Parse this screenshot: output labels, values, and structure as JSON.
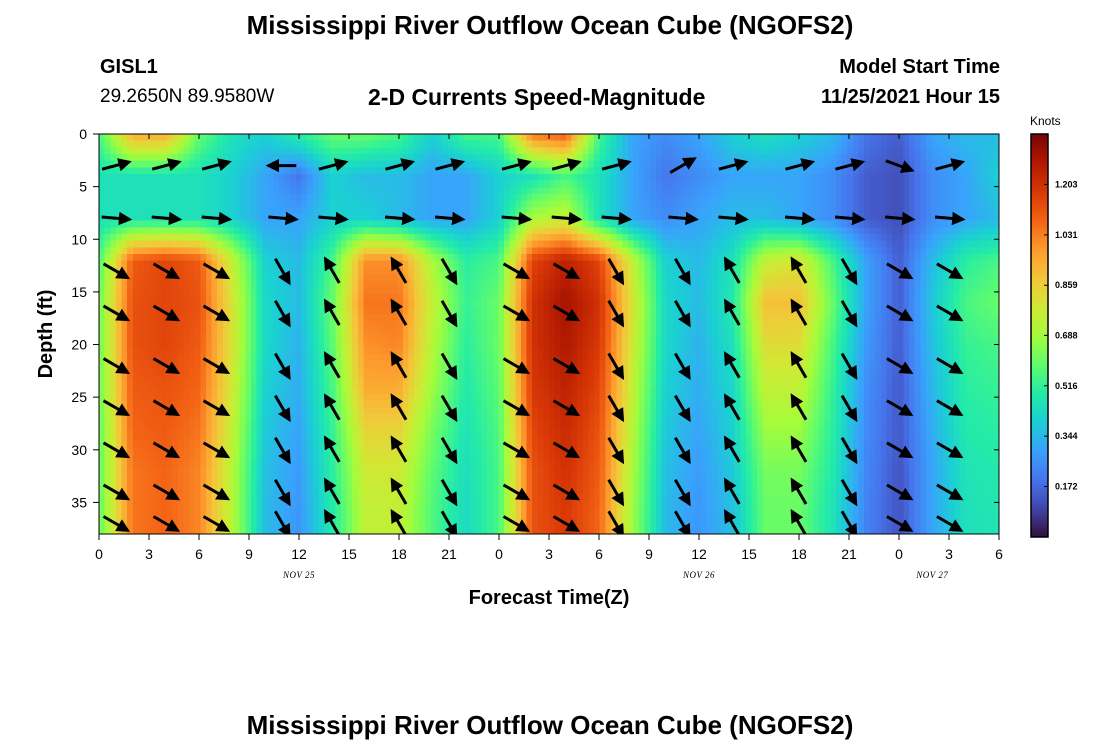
{
  "title": "Mississippi River Outflow Ocean Cube (NGOFS2)",
  "station": {
    "id": "GISL1",
    "coords": "29.2650N  89.9580W"
  },
  "subtitle": "2-D Currents Speed-Magnitude",
  "model_start": {
    "label": "Model Start Time",
    "value": "11/25/2021 Hour 15"
  },
  "repeated_title": "Mississippi River Outflow Ocean Cube (NGOFS2)",
  "chart_data": {
    "type": "heatmap",
    "title": "2-D Currents Speed-Magnitude",
    "xlabel": "Forecast Time(Z)",
    "ylabel": "Depth (ft)",
    "x_range_hours": [
      0,
      54
    ],
    "x_ticks": [
      "0",
      "3",
      "6",
      "9",
      "12",
      "15",
      "18",
      "21",
      "0",
      "3",
      "6",
      "9",
      "12",
      "15",
      "18",
      "21",
      "0",
      "3",
      "6"
    ],
    "date_labels": [
      {
        "label": "NOV 25",
        "hour": 12
      },
      {
        "label": "NOV 26",
        "hour": 36
      },
      {
        "label": "NOV 27",
        "hour": 50
      }
    ],
    "y_range_ft": [
      0,
      38
    ],
    "y_reversed": true,
    "y_ticks": [
      0,
      5,
      10,
      15,
      20,
      25,
      30,
      35
    ],
    "colorbar": {
      "label": "Knots",
      "ticks": [
        "1.203",
        "1.031",
        "0.859",
        "0.688",
        "0.516",
        "0.344",
        "0.172"
      ],
      "min": 0.0,
      "max": 1.375,
      "colormap": [
        "#30123b",
        "#4145ab",
        "#4675ed",
        "#39a2fc",
        "#1bcfd4",
        "#24eca6",
        "#61fc6c",
        "#a4fc3b",
        "#d1e834",
        "#f3c63a",
        "#fe9b2d",
        "#f36315",
        "#d93806",
        "#b11901",
        "#7a0402"
      ]
    },
    "speed_knots": {
      "hours": [
        0,
        2,
        4,
        6,
        8,
        10,
        12,
        14,
        16,
        18,
        20,
        22,
        24,
        26,
        28,
        30,
        32,
        34,
        36,
        38,
        40,
        42,
        44,
        46,
        48,
        50,
        52,
        54
      ],
      "depths_ft": [
        0,
        4,
        8,
        12,
        16,
        20,
        24,
        28,
        32,
        36,
        38
      ],
      "values": [
        [
          0.55,
          0.95,
          0.95,
          0.6,
          0.45,
          0.4,
          0.5,
          0.6,
          0.6,
          0.55,
          0.4,
          0.55,
          0.55,
          1.05,
          1.1,
          0.55,
          0.3,
          0.25,
          0.3,
          0.4,
          0.45,
          0.4,
          0.35,
          0.2,
          0.15,
          0.3,
          0.35,
          0.35
        ],
        [
          0.45,
          0.45,
          0.45,
          0.45,
          0.4,
          0.3,
          0.2,
          0.4,
          0.35,
          0.35,
          0.3,
          0.3,
          0.4,
          0.45,
          0.55,
          0.45,
          0.3,
          0.2,
          0.25,
          0.3,
          0.3,
          0.3,
          0.25,
          0.15,
          0.12,
          0.25,
          0.3,
          0.4
        ],
        [
          0.45,
          0.45,
          0.45,
          0.45,
          0.4,
          0.3,
          0.3,
          0.4,
          0.4,
          0.35,
          0.3,
          0.3,
          0.4,
          0.7,
          0.75,
          0.45,
          0.3,
          0.25,
          0.3,
          0.35,
          0.35,
          0.3,
          0.25,
          0.15,
          0.12,
          0.25,
          0.3,
          0.35
        ],
        [
          0.55,
          1.1,
          1.15,
          1.1,
          0.75,
          0.4,
          0.35,
          0.55,
          1.0,
          1.0,
          0.7,
          0.5,
          0.55,
          1.15,
          1.25,
          1.15,
          0.75,
          0.4,
          0.35,
          0.45,
          0.75,
          0.8,
          0.55,
          0.3,
          0.15,
          0.35,
          0.5,
          0.55
        ],
        [
          0.6,
          1.12,
          1.15,
          1.12,
          0.8,
          0.42,
          0.35,
          0.6,
          1.05,
          1.05,
          0.75,
          0.52,
          0.6,
          1.2,
          1.3,
          1.2,
          0.8,
          0.42,
          0.35,
          0.48,
          0.9,
          0.9,
          0.6,
          0.3,
          0.15,
          0.38,
          0.55,
          0.6
        ],
        [
          0.6,
          1.12,
          1.15,
          1.1,
          0.8,
          0.42,
          0.33,
          0.58,
          1.0,
          1.02,
          0.72,
          0.5,
          0.6,
          1.2,
          1.28,
          1.18,
          0.78,
          0.42,
          0.33,
          0.45,
          0.82,
          0.82,
          0.55,
          0.28,
          0.15,
          0.36,
          0.52,
          0.55
        ],
        [
          0.6,
          1.1,
          1.12,
          1.08,
          0.78,
          0.4,
          0.32,
          0.55,
          0.95,
          0.95,
          0.68,
          0.48,
          0.58,
          1.18,
          1.25,
          1.15,
          0.75,
          0.4,
          0.32,
          0.42,
          0.75,
          0.75,
          0.52,
          0.26,
          0.14,
          0.34,
          0.5,
          0.52
        ],
        [
          0.58,
          1.08,
          1.1,
          1.05,
          0.75,
          0.38,
          0.3,
          0.52,
          0.85,
          0.85,
          0.62,
          0.46,
          0.56,
          1.15,
          1.22,
          1.12,
          0.72,
          0.38,
          0.3,
          0.4,
          0.68,
          0.68,
          0.5,
          0.25,
          0.14,
          0.32,
          0.48,
          0.5
        ],
        [
          0.58,
          1.05,
          1.08,
          1.02,
          0.72,
          0.36,
          0.28,
          0.5,
          0.78,
          0.78,
          0.58,
          0.44,
          0.55,
          1.12,
          1.2,
          1.1,
          0.7,
          0.36,
          0.28,
          0.38,
          0.62,
          0.62,
          0.48,
          0.24,
          0.13,
          0.3,
          0.46,
          0.48
        ],
        [
          0.58,
          1.05,
          1.08,
          1.02,
          0.72,
          0.35,
          0.27,
          0.48,
          0.75,
          0.75,
          0.56,
          0.43,
          0.55,
          1.12,
          1.18,
          1.08,
          0.68,
          0.35,
          0.27,
          0.36,
          0.6,
          0.6,
          0.46,
          0.23,
          0.13,
          0.3,
          0.45,
          0.47
        ],
        [
          0.58,
          1.05,
          1.08,
          1.02,
          0.72,
          0.35,
          0.27,
          0.48,
          0.75,
          0.75,
          0.56,
          0.43,
          0.55,
          1.12,
          1.18,
          1.08,
          0.68,
          0.35,
          0.27,
          0.36,
          0.6,
          0.6,
          0.46,
          0.23,
          0.13,
          0.3,
          0.45,
          0.47
        ]
      ]
    },
    "vectors": {
      "note_directions": "compass degrees, direction current flows toward",
      "hours": [
        1,
        4,
        7,
        11,
        14,
        18,
        21,
        25,
        28,
        31,
        35,
        38,
        42,
        45,
        48,
        51
      ],
      "depths_ft": [
        3,
        8,
        13,
        17,
        22,
        26,
        30,
        34,
        37
      ],
      "directions_deg": [
        [
          75,
          75,
          75,
          270,
          75,
          75,
          75,
          75,
          75,
          75,
          60,
          75,
          75,
          75,
          110,
          75
        ],
        [
          95,
          95,
          95,
          95,
          95,
          95,
          95,
          95,
          95,
          95,
          95,
          95,
          95,
          95,
          95,
          95
        ],
        [
          120,
          120,
          120,
          150,
          330,
          330,
          150,
          120,
          120,
          150,
          150,
          330,
          330,
          150,
          120,
          120
        ],
        [
          120,
          120,
          120,
          150,
          330,
          330,
          150,
          120,
          120,
          150,
          150,
          330,
          330,
          150,
          120,
          120
        ],
        [
          120,
          120,
          120,
          150,
          330,
          330,
          150,
          120,
          120,
          150,
          150,
          330,
          330,
          150,
          120,
          120
        ],
        [
          120,
          120,
          120,
          150,
          330,
          330,
          150,
          120,
          120,
          150,
          150,
          330,
          330,
          150,
          120,
          120
        ],
        [
          120,
          120,
          120,
          150,
          330,
          330,
          150,
          120,
          120,
          150,
          150,
          330,
          330,
          150,
          120,
          120
        ],
        [
          120,
          120,
          120,
          150,
          330,
          330,
          150,
          120,
          120,
          150,
          150,
          330,
          330,
          150,
          120,
          120
        ],
        [
          120,
          120,
          120,
          150,
          330,
          330,
          150,
          120,
          120,
          150,
          150,
          330,
          330,
          150,
          120,
          120
        ]
      ]
    }
  }
}
